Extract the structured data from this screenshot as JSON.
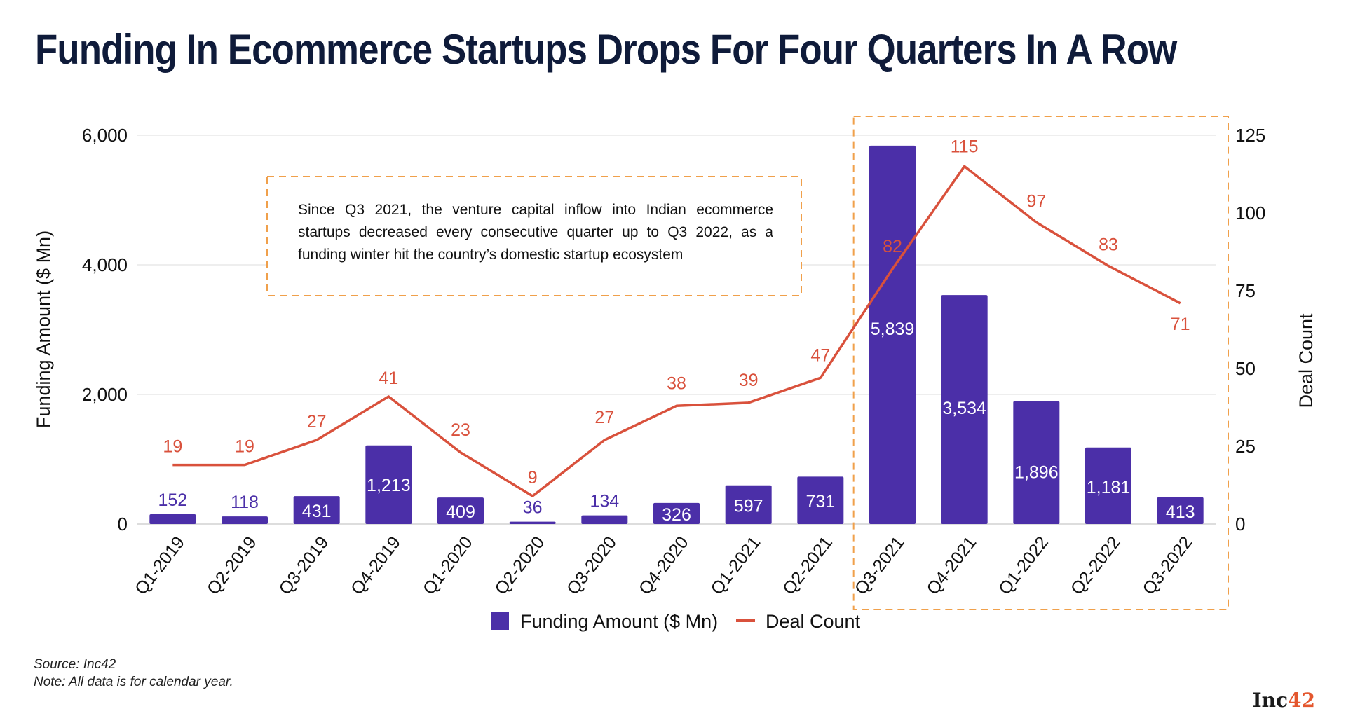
{
  "title": "Funding In Ecommerce Startups Drops For Four Quarters In A Row",
  "annotation": "Since Q3 2021, the venture capital inflow into Indian ecommerce startups decreased every consecutive quarter up to Q3 2022, as a funding winter hit the country’s domestic startup ecosystem",
  "footer": {
    "source": "Source: Inc42",
    "note": "Note: All data is for calendar year."
  },
  "logo": {
    "text": "Inc",
    "num": "42"
  },
  "colors": {
    "bar": "#4b2fa8",
    "line": "#d9513c",
    "highlight": "#f0a04b",
    "grid": "#dddddd"
  },
  "chart_data": {
    "type": "bar",
    "categories": [
      "Q1-2019",
      "Q2-2019",
      "Q3-2019",
      "Q4-2019",
      "Q1-2020",
      "Q2-2020",
      "Q3-2020",
      "Q4-2020",
      "Q1-2021",
      "Q2-2021",
      "Q3-2021",
      "Q4-2021",
      "Q1-2022",
      "Q2-2022",
      "Q3-2022"
    ],
    "series": [
      {
        "name": "Funding Amount ($ Mn)",
        "type": "bar",
        "axis": "left",
        "values": [
          152,
          118,
          431,
          1213,
          409,
          36,
          134,
          326,
          597,
          731,
          5839,
          3534,
          1896,
          1181,
          413
        ],
        "labels": [
          "152",
          "118",
          "431",
          "1,213",
          "409",
          "36",
          "134",
          "326",
          "597",
          "731",
          "5,839",
          "3,534",
          "1,896",
          "1,181",
          "413"
        ]
      },
      {
        "name": "Deal Count",
        "type": "line",
        "axis": "right",
        "values": [
          19,
          19,
          27,
          41,
          23,
          9,
          27,
          38,
          39,
          47,
          82,
          115,
          97,
          83,
          71
        ]
      }
    ],
    "ylabel": "Funding Amount ($ Mn)",
    "y2label": "Deal Count",
    "ylim": [
      0,
      6000
    ],
    "y2lim": [
      0,
      125
    ],
    "yticks": [
      "0",
      "2,000",
      "4,000",
      "6,000"
    ],
    "y2ticks": [
      "0",
      "25",
      "50",
      "75",
      "100",
      "125"
    ],
    "highlight_range": [
      "Q3-2021",
      "Q3-2022"
    ],
    "grid": true,
    "legend": "bottom-center"
  }
}
